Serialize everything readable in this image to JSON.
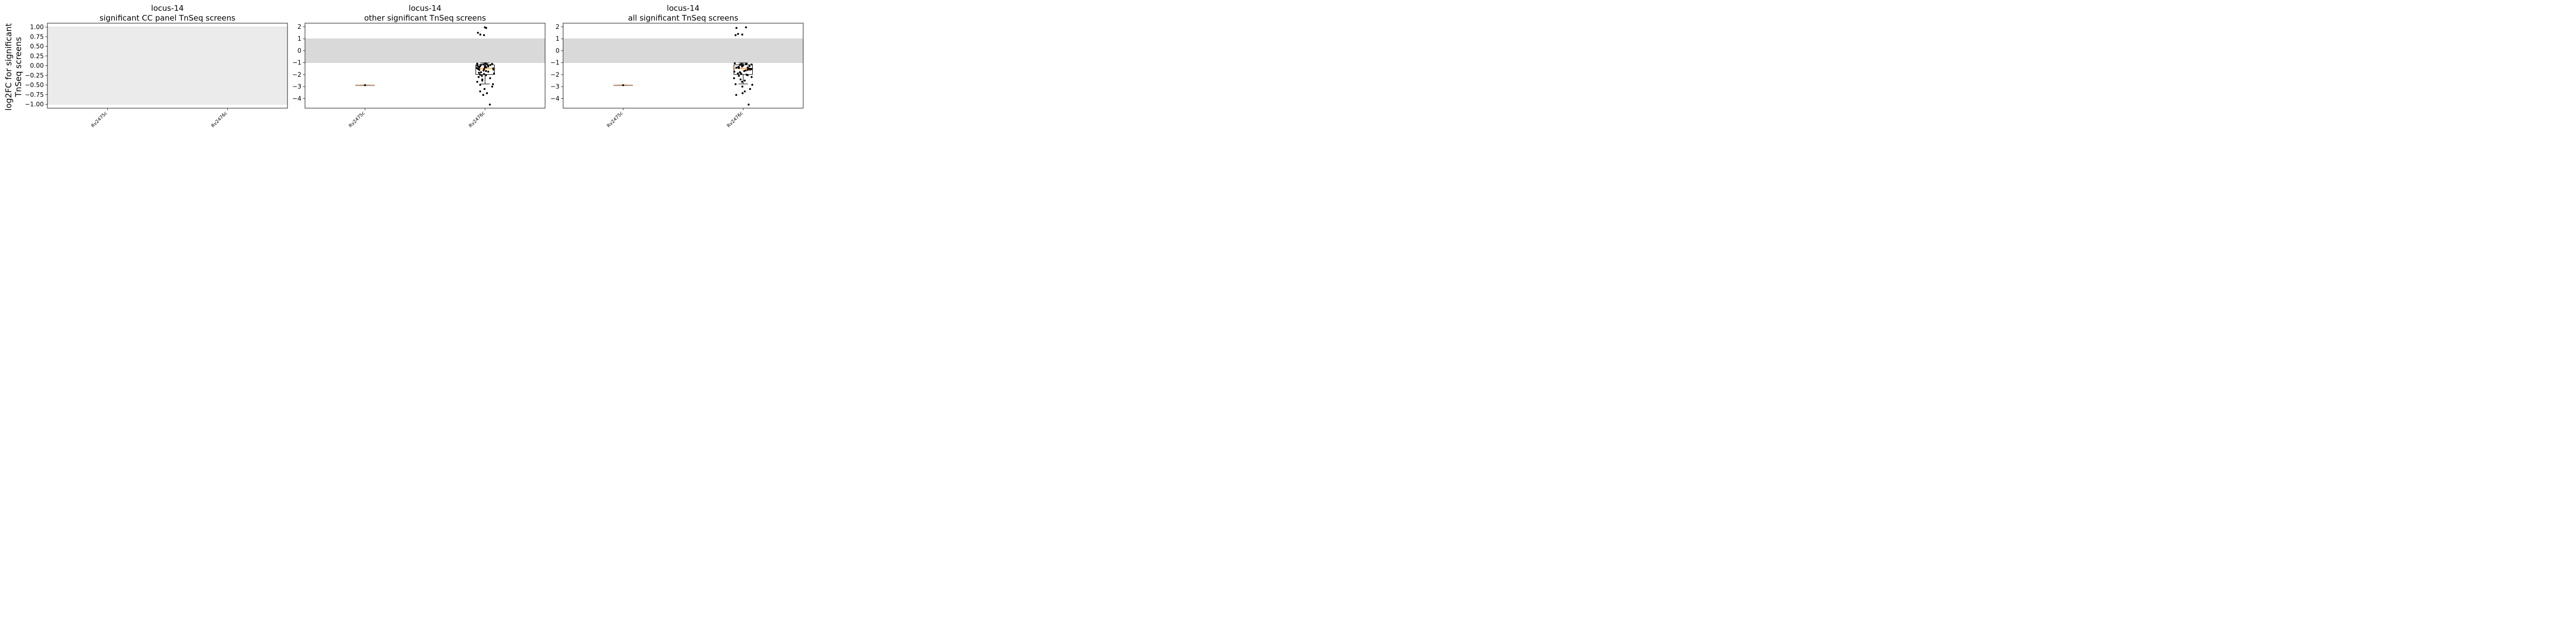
{
  "figure": {
    "ylabel_line1": "log2FC for significant",
    "ylabel_line2": "TnSeq screens"
  },
  "colors": {
    "band_panel1": "#ebebeb",
    "band": "#d9d9d9",
    "point": "#000000",
    "median": "#ff7f0e",
    "box": "#000000"
  },
  "chart_data": [
    {
      "type": "box",
      "title_line1": "locus-14",
      "title_line2": "significant CC panel TnSeq screens",
      "categories": [
        "Rv2475c",
        "Rv2476c"
      ],
      "ylim": [
        -1.1,
        1.1
      ],
      "yticks": [
        -1.0,
        -0.75,
        -0.5,
        -0.25,
        0.0,
        0.25,
        0.5,
        0.75,
        1.0
      ],
      "ytick_labels": [
        "−1.00",
        "−0.75",
        "−0.50",
        "−0.25",
        "0.00",
        "0.25",
        "0.50",
        "0.75",
        "1.00"
      ],
      "band": [
        -1,
        1
      ],
      "series": []
    },
    {
      "type": "box",
      "title_line1": "locus-14",
      "title_line2": "other significant TnSeq screens",
      "categories": [
        "Rv2475c",
        "Rv2476c"
      ],
      "ylim": [
        -4.8,
        2.3
      ],
      "yticks": [
        -4,
        -3,
        -2,
        -1,
        0,
        1,
        2
      ],
      "ytick_labels": [
        "−4",
        "−3",
        "−2",
        "−1",
        "0",
        "1",
        "2"
      ],
      "band": [
        -1,
        1
      ],
      "series": [
        {
          "category": "Rv2475c",
          "box": {
            "q1": -2.88,
            "median": -2.88,
            "q3": -2.88,
            "whisker_low": -2.88,
            "whisker_high": -2.88
          },
          "points": [
            -2.88
          ]
        },
        {
          "category": "Rv2476c",
          "box": {
            "q1": -1.99,
            "median": -1.48,
            "q3": -1.18,
            "whisker_low": -2.78,
            "whisker_high": -1.02
          },
          "points": [
            1.95,
            1.9,
            1.5,
            1.35,
            1.3,
            -1.05,
            -1.08,
            -1.1,
            -1.12,
            -1.15,
            -1.18,
            -1.2,
            -1.22,
            -1.25,
            -1.28,
            -1.3,
            -1.32,
            -1.35,
            -1.38,
            -1.4,
            -1.42,
            -1.45,
            -1.48,
            -1.5,
            -1.52,
            -1.55,
            -1.58,
            -1.6,
            -1.65,
            -1.7,
            -1.75,
            -1.8,
            -1.85,
            -1.9,
            -1.95,
            -2.0,
            -2.05,
            -2.1,
            -2.2,
            -2.3,
            -2.4,
            -2.5,
            -2.6,
            -2.8,
            -2.85,
            -3.0,
            -3.2,
            -3.4,
            -3.55,
            -3.7,
            -4.5
          ]
        }
      ]
    },
    {
      "type": "box",
      "title_line1": "locus-14",
      "title_line2": "all significant TnSeq screens",
      "categories": [
        "Rv2475c",
        "Rv2476c"
      ],
      "ylim": [
        -4.8,
        2.3
      ],
      "yticks": [
        -4,
        -3,
        -2,
        -1,
        0,
        1,
        2
      ],
      "ytick_labels": [
        "−4",
        "−3",
        "−2",
        "−1",
        "0",
        "1",
        "2"
      ],
      "band": [
        -1,
        1
      ],
      "series": [
        {
          "category": "Rv2475c",
          "box": {
            "q1": -2.88,
            "median": -2.88,
            "q3": -2.88,
            "whisker_low": -2.88,
            "whisker_high": -2.88
          },
          "points": [
            -2.88
          ]
        },
        {
          "category": "Rv2476c",
          "box": {
            "q1": -1.99,
            "median": -1.48,
            "q3": -1.18,
            "whisker_low": -2.78,
            "whisker_high": -1.02
          },
          "points": [
            1.95,
            1.9,
            1.4,
            1.35,
            1.3,
            -1.05,
            -1.08,
            -1.1,
            -1.12,
            -1.15,
            -1.18,
            -1.2,
            -1.22,
            -1.25,
            -1.28,
            -1.3,
            -1.32,
            -1.35,
            -1.38,
            -1.4,
            -1.42,
            -1.45,
            -1.48,
            -1.5,
            -1.52,
            -1.55,
            -1.58,
            -1.6,
            -1.65,
            -1.7,
            -1.75,
            -1.8,
            -1.85,
            -1.9,
            -1.95,
            -2.0,
            -2.05,
            -2.1,
            -2.2,
            -2.3,
            -2.4,
            -2.5,
            -2.6,
            -2.8,
            -2.85,
            -3.0,
            -3.2,
            -3.4,
            -3.55,
            -3.7,
            -4.5
          ]
        }
      ]
    }
  ]
}
